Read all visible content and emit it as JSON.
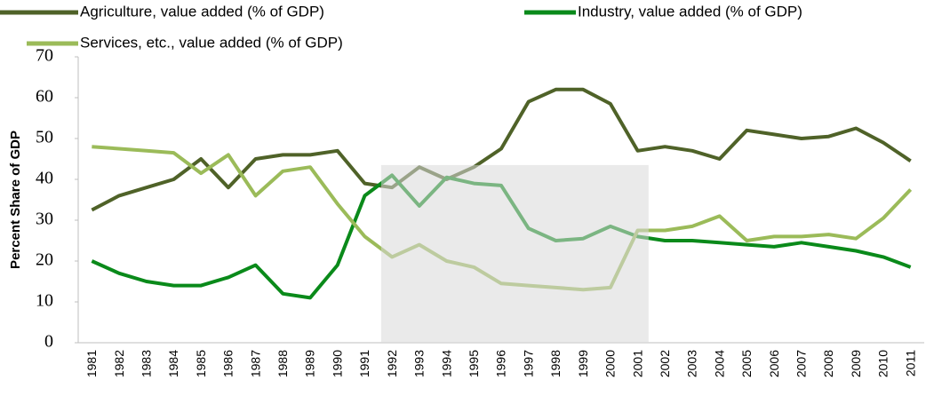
{
  "chart_data": {
    "type": "line",
    "y_label": "Percent Share of GDP",
    "categories": [
      "1981",
      "1982",
      "1983",
      "1984",
      "1985",
      "1986",
      "1987",
      "1988",
      "1989",
      "1990",
      "1991",
      "1992",
      "1993",
      "1994",
      "1995",
      "1996",
      "1997",
      "1998",
      "1999",
      "2000",
      "2001",
      "2002",
      "2003",
      "2004",
      "2005",
      "2006",
      "2007",
      "2008",
      "2009",
      "2010",
      "2011"
    ],
    "series": [
      {
        "name": "Agriculture, value added (% of GDP)",
        "color": "#4f6228",
        "values": [
          32.5,
          36,
          38,
          40,
          45,
          38,
          45,
          46,
          46,
          47,
          39,
          38,
          43,
          40,
          43,
          47.5,
          59,
          62,
          62,
          58.5,
          47,
          48,
          47,
          45,
          52,
          51,
          50,
          50.5,
          52.5,
          49,
          44.5
        ]
      },
      {
        "name": "Industry, value added (% of GDP)",
        "color": "#0a8a1a",
        "values": [
          20,
          17,
          15,
          14,
          14,
          16,
          19,
          12,
          11,
          19,
          36,
          41,
          33.5,
          40.5,
          39,
          38.5,
          28,
          25,
          25.5,
          28.5,
          26,
          25,
          25,
          24.5,
          24,
          23.5,
          24.5,
          23.5,
          22.5,
          21,
          18.5
        ]
      },
      {
        "name": "Services, etc., value added (% of GDP)",
        "color": "#9bbb59",
        "values": [
          48,
          47.5,
          47,
          46.5,
          41.5,
          46,
          36,
          42,
          43,
          34,
          26,
          21,
          24,
          20,
          18.5,
          14.5,
          14,
          13.5,
          13,
          13.5,
          27.5,
          27.5,
          28.5,
          31,
          25,
          26,
          26,
          26.5,
          25.5,
          30.5,
          37.5
        ]
      }
    ],
    "shaded_range": {
      "categories": [
        "1992",
        "2001"
      ],
      "top": 43.5
    },
    "ylim": [
      0,
      70
    ],
    "yticks": [
      0,
      10,
      20,
      30,
      40,
      50,
      60,
      70
    ],
    "grid": false
  }
}
